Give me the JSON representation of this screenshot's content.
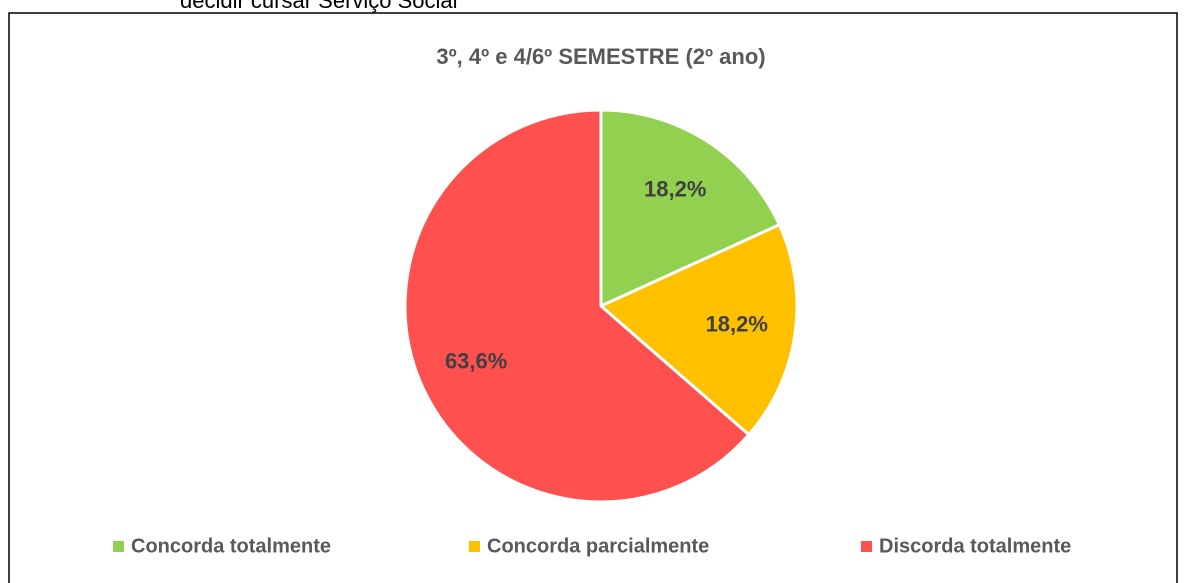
{
  "caption": "decidir cursar Serviço Social",
  "chart_data": {
    "type": "pie",
    "title": "3º, 4º e 4/6º SEMESTRE (2º ano)",
    "categories": [
      "Concorda totalmente",
      "Concorda parcialmente",
      "Discorda totalmente"
    ],
    "values": [
      18.2,
      18.2,
      63.6
    ],
    "value_labels": [
      "18,2%",
      "18,2%",
      "63,6%"
    ],
    "colors": [
      "#92d050",
      "#ffc000",
      "#ff5050"
    ],
    "legend": "bottom"
  }
}
